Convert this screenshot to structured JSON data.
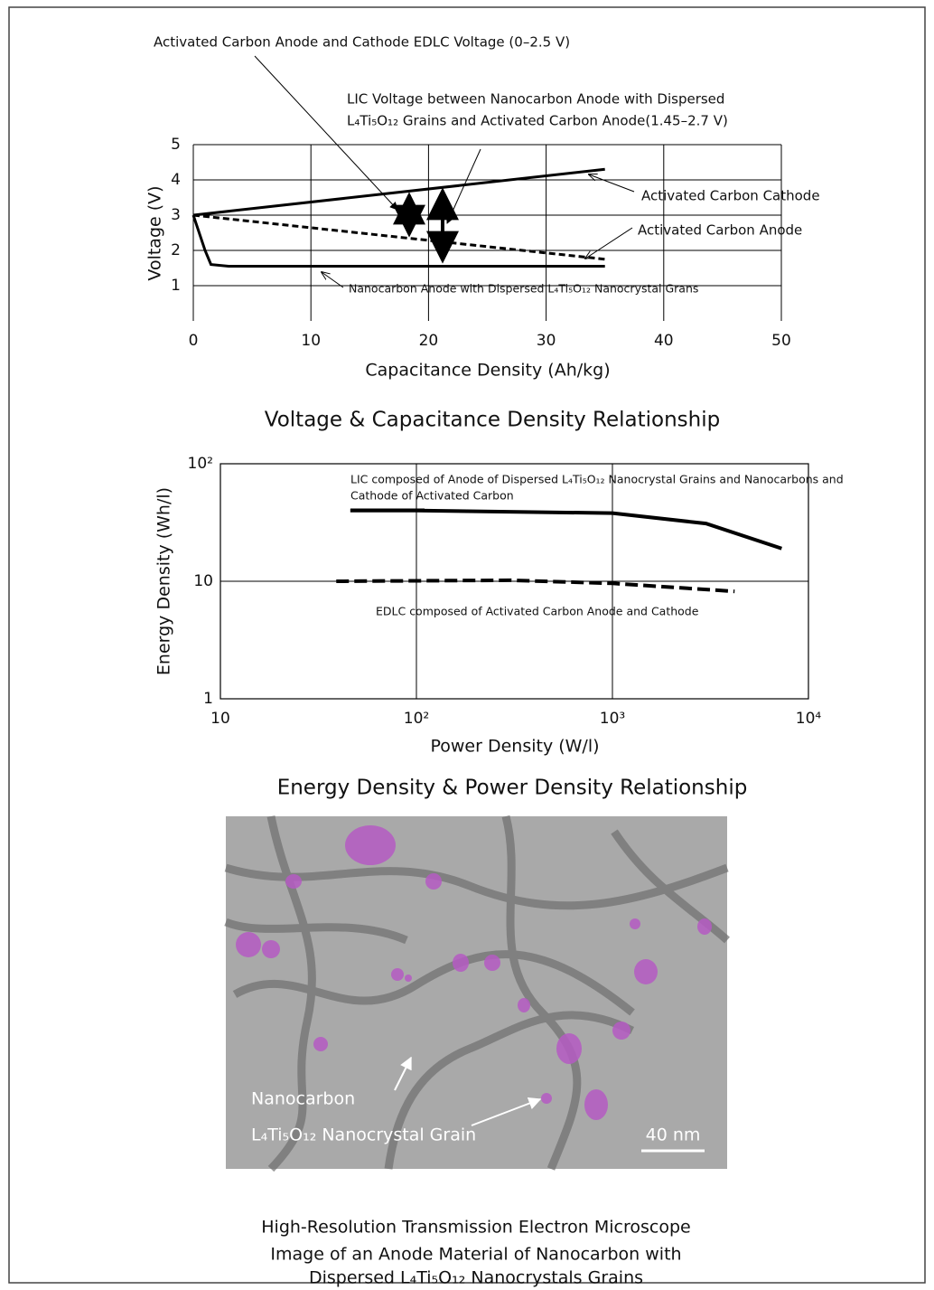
{
  "chart_data": [
    {
      "type": "line",
      "title": "Voltage & Capacitance Density Relationship",
      "x_label": "Capacitance Density (Ah/kg)",
      "y_label": "Voltage (V)",
      "annotations": [
        "Activated Carbon Anode and Cathode EDLC Voltage (0–2.5 V)",
        "LIC Voltage between Nanocarbon  Anode with Dispersed",
        "L₄Ti₅O₁₂ Grains and Activated Carbon Anode(1.45–2.7 V)"
      ],
      "xlim": [
        0,
        50
      ],
      "ylim": [
        0,
        5
      ],
      "xticks": [
        0,
        10,
        20,
        30,
        40,
        50
      ],
      "yticks": [
        1,
        2,
        3,
        4,
        5
      ],
      "grid": true,
      "series": [
        {
          "name": "Activated Carbon Cathode",
          "color": "#000000",
          "style": "solid",
          "x": [
            0,
            35
          ],
          "values": [
            3,
            4.3
          ]
        },
        {
          "name": "Activated Carbon Anode",
          "color": "#000000",
          "style": "dashed",
          "x": [
            0,
            35
          ],
          "values": [
            3,
            1.75
          ]
        },
        {
          "name": "Nanocarbon Anode with Dispersed L₄Ti₅O₁₂ Nanocrystal Grans",
          "color": "#000000",
          "style": "solid",
          "x": [
            0,
            1,
            1.5,
            3,
            35
          ],
          "values": [
            3,
            2,
            1.6,
            1.55,
            1.55
          ]
        }
      ]
    },
    {
      "type": "line",
      "title": "Energy Density & Power Density Relationship",
      "x_label": "Power Density (W/l)",
      "y_label": "Energy Density (Wh/l)",
      "log_x": true,
      "log_y": true,
      "xlim": [
        10,
        10000
      ],
      "ylim": [
        1,
        100
      ],
      "xticks": [
        10,
        {
          "value": 100,
          "label": "10²"
        },
        {
          "value": 1000,
          "label": "10³"
        },
        {
          "value": 10000,
          "label": "10⁴"
        }
      ],
      "yticks": [
        1,
        10,
        {
          "value": 100,
          "label": "10²"
        }
      ],
      "grid": true,
      "series": [
        {
          "name": "LIC composed of Anode of Dispersed L₄Ti₅O₁₂ Nanocrystal Grains and Nanocarbons and",
          "name_cont": "Cathode of Activated Carbon",
          "color": "#000000",
          "style": "solid",
          "x": [
            46,
            100,
            1000,
            3000,
            7300
          ],
          "values": [
            40,
            40,
            38,
            31,
            19
          ]
        },
        {
          "name": "EDLC composed of Activated Carbon Anode and Cathode",
          "color": "#000000",
          "style": "dashed",
          "x": [
            39,
            300,
            1000,
            4200
          ],
          "values": [
            10,
            10.2,
            9.6,
            8.2
          ]
        }
      ]
    }
  ],
  "image": {
    "labels": [
      "Nanocarbon",
      "L₄Ti₅O₁₂ Nanocrystal Grain"
    ],
    "scale_bar": "40 nm",
    "caption": [
      "High-Resolution Transmission Electron Microscope",
      "Image of an Anode Material of Nanocarbon with",
      "Dispersed L₄Ti₅O₁₂ Nanocrystals Grains"
    ]
  }
}
